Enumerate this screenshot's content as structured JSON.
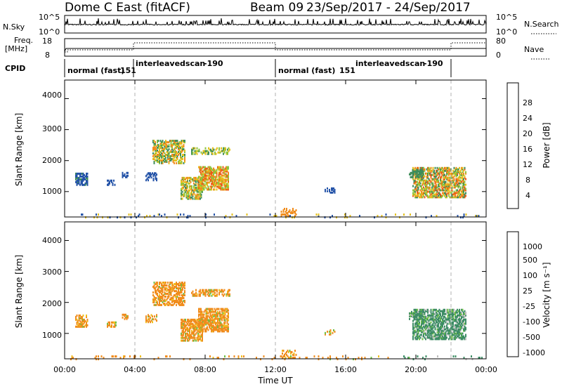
{
  "header": {
    "title": "Dome C East (fitACF)",
    "beam": "Beam 09",
    "date_range": "23/Sep/2017 - 24/Sep/2017"
  },
  "strip_nsky": {
    "left_label": "N.Sky",
    "right_label": "N.Search",
    "left_ticks": [
      "10^5",
      "10^0"
    ],
    "right_ticks": [
      "10^5",
      "10^0"
    ]
  },
  "strip_freq": {
    "left_label_1": "Freq.",
    "left_label_2": "[MHz]",
    "right_label": "Nave",
    "left_ticks": [
      "18",
      "8"
    ],
    "right_ticks": [
      "80",
      "0"
    ]
  },
  "strip_cpid": {
    "label": "CPID",
    "segments": [
      {
        "name": "normal (fast)",
        "id": "151"
      },
      {
        "name": "interleavedscan",
        "id": "-190"
      },
      {
        "name": "normal (fast)",
        "id": "151"
      },
      {
        "name": "interleavedscan",
        "id": "-190"
      }
    ]
  },
  "colors": {
    "power": [
      "#1428d8",
      "#2453a8",
      "#3e8c5a",
      "#8cc43c",
      "#e4c01c",
      "#f08c1c",
      "#ec5a14",
      "#e01c14"
    ],
    "velocity": [
      "#2040a8",
      "#3c8c64",
      "#6cc044",
      "#bcbcbc",
      "#f0c01c",
      "#f08c1c",
      "#f06014",
      "#e01c14"
    ]
  },
  "chart_data": [
    {
      "type": "heatmap",
      "ylabel": "Slant Range [km]",
      "ylim": [
        180,
        4600
      ],
      "y_ticks": [
        "4000",
        "3000",
        "2000",
        "1000"
      ],
      "colorbar_label": "Power [dB]",
      "colorbar_ticks": [
        "28",
        "24",
        "20",
        "16",
        "12",
        "8",
        "4"
      ],
      "features": [
        {
          "hour": 4.8,
          "range_km": 2300,
          "value": 16
        },
        {
          "hour": 7.7,
          "range_km": 1300,
          "value": 20
        },
        {
          "hour": 8.7,
          "range_km": 1600,
          "value": 16
        },
        {
          "hour": 21.7,
          "range_km": 1000,
          "value": 20
        }
      ]
    },
    {
      "type": "heatmap",
      "ylabel": "Slant Range [km]",
      "ylim": [
        180,
        4600
      ],
      "y_ticks": [
        "4000",
        "3000",
        "2000",
        "1000"
      ],
      "colorbar_label": "Velocity [m s⁻¹]",
      "colorbar_ticks": [
        "1000",
        "500",
        "100",
        "25",
        "-25",
        "-100",
        "-500",
        "-1000"
      ],
      "features": [
        {
          "hour": 8.0,
          "range_km": 1400,
          "value": -100
        },
        {
          "hour": 21.8,
          "range_km": 1200,
          "value": 100
        }
      ]
    }
  ],
  "x_axis": {
    "label": "Time UT",
    "ticks": [
      "00:00",
      "04:00",
      "08:00",
      "12:00",
      "16:00",
      "20:00",
      "00:00"
    ]
  }
}
